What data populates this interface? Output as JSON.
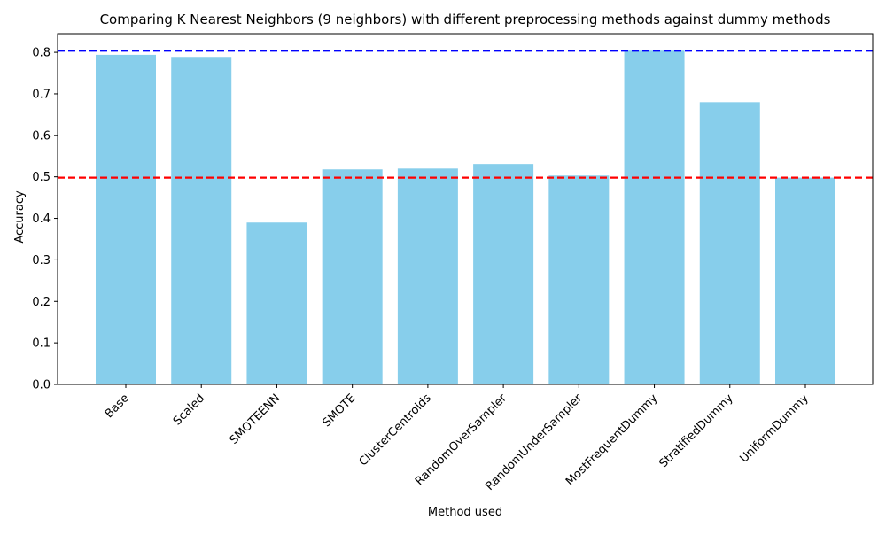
{
  "chart_data": {
    "type": "bar",
    "title": "Comparing K Nearest Neighbors (9 neighbors) with different preprocessing methods against dummy methods",
    "xlabel": "Method used",
    "ylabel": "Accuracy",
    "categories": [
      "Base",
      "Scaled",
      "SMOTEENN",
      "SMOTE",
      "ClusterCentroids",
      "RandomOverSampler",
      "RandomUnderSampler",
      "MostFrequentDummy",
      "StratifiedDummy",
      "UniformDummy"
    ],
    "values": [
      0.794,
      0.789,
      0.39,
      0.518,
      0.52,
      0.531,
      0.503,
      0.804,
      0.68,
      0.498
    ],
    "ylim": [
      0,
      0.845
    ],
    "yticks": [
      0.0,
      0.1,
      0.2,
      0.3,
      0.4,
      0.5,
      0.6,
      0.7,
      0.8
    ],
    "ytick_labels": [
      "0.0",
      "0.1",
      "0.2",
      "0.3",
      "0.4",
      "0.5",
      "0.6",
      "0.7",
      "0.8"
    ],
    "bar_color": "#87ceeb",
    "reference_lines": [
      {
        "value": 0.804,
        "color": "#0000ff",
        "style": "dashed"
      },
      {
        "value": 0.498,
        "color": "#ff0000",
        "style": "dashed"
      }
    ],
    "grid": false,
    "legend": "none"
  }
}
